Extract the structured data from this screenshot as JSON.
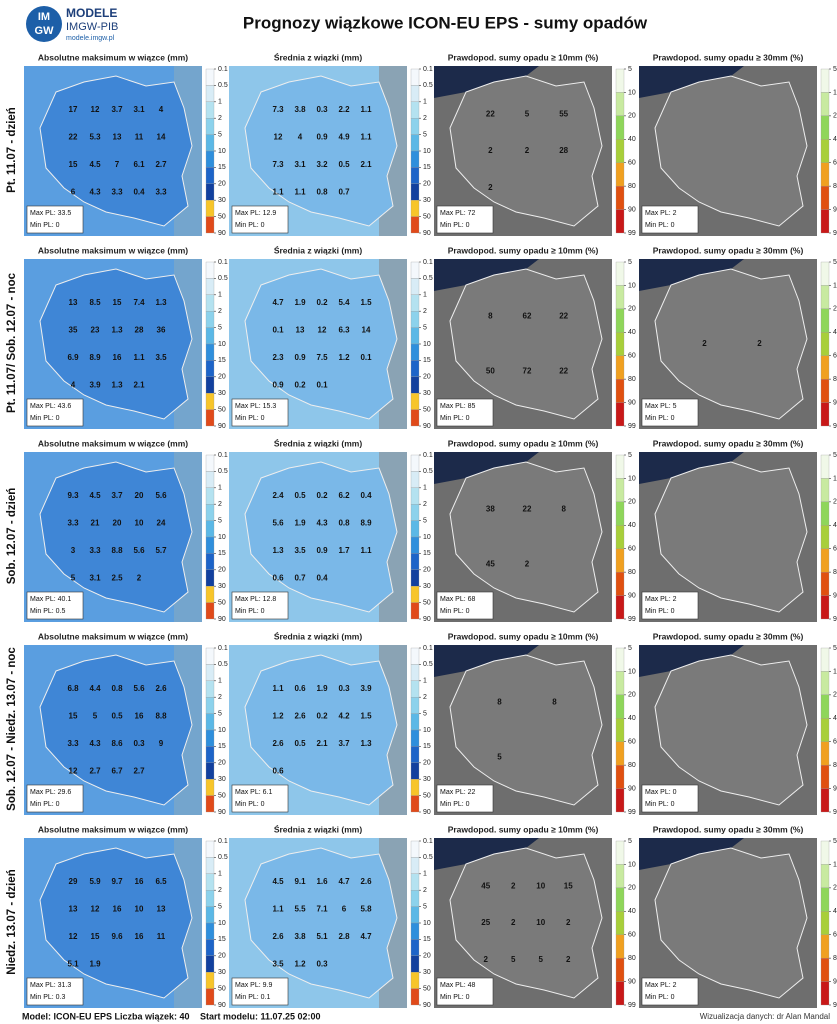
{
  "header": {
    "logo_text": [
      "IM",
      "GW"
    ],
    "brand": "MODELE",
    "brand_sub": "IMGW-PIB",
    "url": "modele.imgw.pl",
    "title": "Prognozy wiązkowe ICON-EU EPS - sumy opadów"
  },
  "panel_titles": [
    "Absolutne maksimum w wiązce (mm)",
    "Średnia z wiązki (mm)",
    "Prawdopod. sumy opadu ≥ 10mm (%)",
    "Prawdopod. sumy opadu ≥ 30mm (%)"
  ],
  "scales": {
    "mm": [
      0.1,
      0.5,
      1,
      2,
      5,
      10,
      15,
      20,
      30,
      50,
      90
    ],
    "prob": [
      5,
      10,
      20,
      40,
      60,
      80,
      90,
      99
    ]
  },
  "rows": [
    {
      "label": "Pt. 11.07 - dzień",
      "panels": [
        {
          "labels": [
            "17",
            "12",
            "3.7",
            "3.1",
            "4",
            "22",
            "5.3",
            "13",
            "11",
            "14",
            "15",
            "4.5",
            "7",
            "6.1",
            "2.7",
            "6",
            "4.3",
            "3.3",
            "0.4",
            "3.3"
          ],
          "max": "Max PL: 33.5",
          "min": "Min PL: 0"
        },
        {
          "labels": [
            "7.3",
            "3.8",
            "0.3",
            "2.2",
            "1.1",
            "12",
            "4",
            "0.9",
            "4.9",
            "1.1",
            "7.3",
            "3.1",
            "3.2",
            "0.5",
            "2.1",
            "1.1",
            "1.1",
            "0.8",
            "0.7"
          ],
          "max": "Max PL: 12.9",
          "min": "Min PL: 0"
        },
        {
          "labels": [
            "22",
            "5",
            "55",
            "2",
            "2",
            "28",
            "2"
          ],
          "max": "Max PL: 72",
          "min": "Min PL: 0"
        },
        {
          "labels": [],
          "max": "Max PL: 2",
          "min": "Min PL: 0"
        }
      ]
    },
    {
      "label": "Pt. 11.07/ Sob. 12.07 - noc",
      "panels": [
        {
          "labels": [
            "13",
            "8.5",
            "15",
            "7.4",
            "1.3",
            "35",
            "23",
            "1.3",
            "28",
            "36",
            "6.9",
            "8.9",
            "16",
            "1.1",
            "3.5",
            "4",
            "3.9",
            "1.3",
            "2.1"
          ],
          "max": "Max PL: 43.6",
          "min": "Min PL: 0"
        },
        {
          "labels": [
            "4.7",
            "1.9",
            "0.2",
            "5.4",
            "1.5",
            "0.1",
            "13",
            "12",
            "6.3",
            "14",
            "2.3",
            "0.9",
            "7.5",
            "1.2",
            "0.1",
            "0.9",
            "0.2",
            "0.1"
          ],
          "max": "Max PL: 15.3",
          "min": "Min PL: 0"
        },
        {
          "labels": [
            "8",
            "62",
            "22",
            "50",
            "72",
            "22"
          ],
          "max": "Max PL: 85",
          "min": "Min PL: 0"
        },
        {
          "labels": [
            "2",
            "2"
          ],
          "max": "Max PL: 5",
          "min": "Min PL: 0"
        }
      ]
    },
    {
      "label": "Sob. 12.07 - dzień",
      "panels": [
        {
          "labels": [
            "9.3",
            "4.5",
            "3.7",
            "20",
            "5.6",
            "3.3",
            "21",
            "20",
            "10",
            "24",
            "3",
            "3.3",
            "8.8",
            "5.6",
            "5.7",
            "5",
            "3.1",
            "2.5",
            "2"
          ],
          "max": "Max PL: 40.1",
          "min": "Min PL: 0.5"
        },
        {
          "labels": [
            "2.4",
            "0.5",
            "0.2",
            "6.2",
            "0.4",
            "5.6",
            "1.9",
            "4.3",
            "0.8",
            "8.9",
            "1.3",
            "3.5",
            "0.9",
            "1.7",
            "1.1",
            "0.6",
            "0.7",
            "0.4"
          ],
          "max": "Max PL: 12.8",
          "min": "Min PL: 0"
        },
        {
          "labels": [
            "38",
            "22",
            "8",
            "45",
            "2"
          ],
          "max": "Max PL: 68",
          "min": "Min PL: 0"
        },
        {
          "labels": [],
          "max": "Max PL: 2",
          "min": "Min PL: 0"
        }
      ]
    },
    {
      "label": "Sob. 12.07 - Niedz. 13.07 - noc",
      "panels": [
        {
          "labels": [
            "6.8",
            "4.4",
            "0.8",
            "5.6",
            "2.6",
            "15",
            "5",
            "0.5",
            "16",
            "8.8",
            "3.3",
            "4.3",
            "8.6",
            "0.3",
            "9",
            "12",
            "2.7",
            "6.7",
            "2.7"
          ],
          "max": "Max PL: 29.6",
          "min": "Min PL: 0"
        },
        {
          "labels": [
            "1.1",
            "0.6",
            "1.9",
            "0.3",
            "3.9",
            "1.2",
            "2.6",
            "0.2",
            "4.2",
            "1.5",
            "2.6",
            "0.5",
            "2.1",
            "3.7",
            "1.3",
            "0.6"
          ],
          "max": "Max PL: 6.1",
          "min": "Min PL: 0"
        },
        {
          "labels": [
            "8",
            "8",
            "5"
          ],
          "max": "Max PL: 22",
          "min": "Min PL: 0"
        },
        {
          "labels": [],
          "max": "Max PL: 0",
          "min": "Min PL: 0"
        }
      ]
    },
    {
      "label": "Niedz. 13.07 - dzień",
      "panels": [
        {
          "labels": [
            "29",
            "5.9",
            "9.7",
            "16",
            "6.5",
            "13",
            "12",
            "16",
            "10",
            "13",
            "12",
            "15",
            "9.6",
            "16",
            "11",
            "5.1",
            "1.9"
          ],
          "max": "Max PL: 31.3",
          "min": "Min PL: 0.3"
        },
        {
          "labels": [
            "4.5",
            "9.1",
            "1.6",
            "4.7",
            "2.6",
            "1.1",
            "5.5",
            "7.1",
            "6",
            "5.8",
            "2.6",
            "3.8",
            "5.1",
            "2.8",
            "4.7",
            "3.5",
            "1.2",
            "0.3"
          ],
          "max": "Max PL: 9.9",
          "min": "Min PL: 0.1"
        },
        {
          "labels": [
            "45",
            "2",
            "10",
            "15",
            "25",
            "2",
            "10",
            "2",
            "2",
            "5",
            "5",
            "2"
          ],
          "max": "Max PL: 48",
          "min": "Min PL: 0"
        },
        {
          "labels": [],
          "max": "Max PL: 2",
          "min": "Min PL: 0"
        }
      ]
    }
  ],
  "footer": {
    "model": "Model: ICON-EU EPS Liczba wiązek: 40",
    "start": "Start modelu: 11.07.25 02:00",
    "credit": "Wizualizacja danych: dr Alan Mandal"
  }
}
